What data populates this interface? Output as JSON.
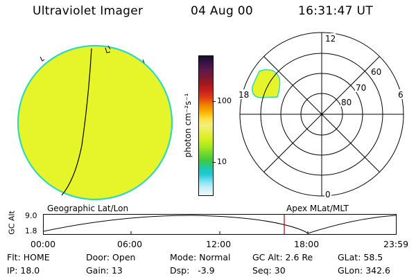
{
  "header": {
    "instrument": "Ultraviolet Imager",
    "date": "04 Aug 00",
    "time": "16:31:47 UT"
  },
  "colorbar": {
    "unit_label": "photon cm⁻²s⁻¹",
    "ticks": [
      "100",
      "10"
    ],
    "colors": [
      "#1a0f2e",
      "#3b1247",
      "#5c1a4a",
      "#7a1838",
      "#a01818",
      "#c82020",
      "#e04010",
      "#f08000",
      "#f8b000",
      "#ffe040",
      "#f0f080",
      "#e8f040",
      "#d0f020",
      "#a8e820",
      "#70d830",
      "#40c840",
      "#20c8a0",
      "#20c8d8",
      "#80e0f0",
      "#c8f0f8",
      "#f0f8f8"
    ]
  },
  "earth_image": {
    "fill_color": "#e6f52a",
    "edge_color": "#30d8c0"
  },
  "polar_plot": {
    "mlt_labels": {
      "top": "12",
      "left": "18",
      "right": "6",
      "bottom": "0"
    },
    "lat_labels": [
      "60",
      "70",
      "80"
    ]
  },
  "timeline": {
    "ylabel": "GC Alt",
    "y_ticks": [
      "9.0",
      "1.8"
    ],
    "left_title": "Geographic Lat/Lon",
    "right_title": "Apex MLat/MLT",
    "x_ticks": [
      "00:00",
      "06:00",
      "12:00",
      "18:00",
      "23:59"
    ],
    "current_marker_color": "#c01010"
  },
  "status": {
    "row1": [
      {
        "label": "Flt:",
        "value": "HOME"
      },
      {
        "label": "Door:",
        "value": "Open"
      },
      {
        "label": "Mode:",
        "value": "Normal"
      },
      {
        "label": "GC Alt:",
        "value": "2.6 Re"
      },
      {
        "label": "GLat:",
        "value": "58.5"
      }
    ],
    "row2": [
      {
        "label": "IP:",
        "value": "18.0"
      },
      {
        "label": "Gain:",
        "value": "13"
      },
      {
        "label": "Dsp:",
        "value": "-3.9"
      },
      {
        "label": "Seq:",
        "value": "30"
      },
      {
        "label": "GLon:",
        "value": "342.6"
      }
    ]
  }
}
